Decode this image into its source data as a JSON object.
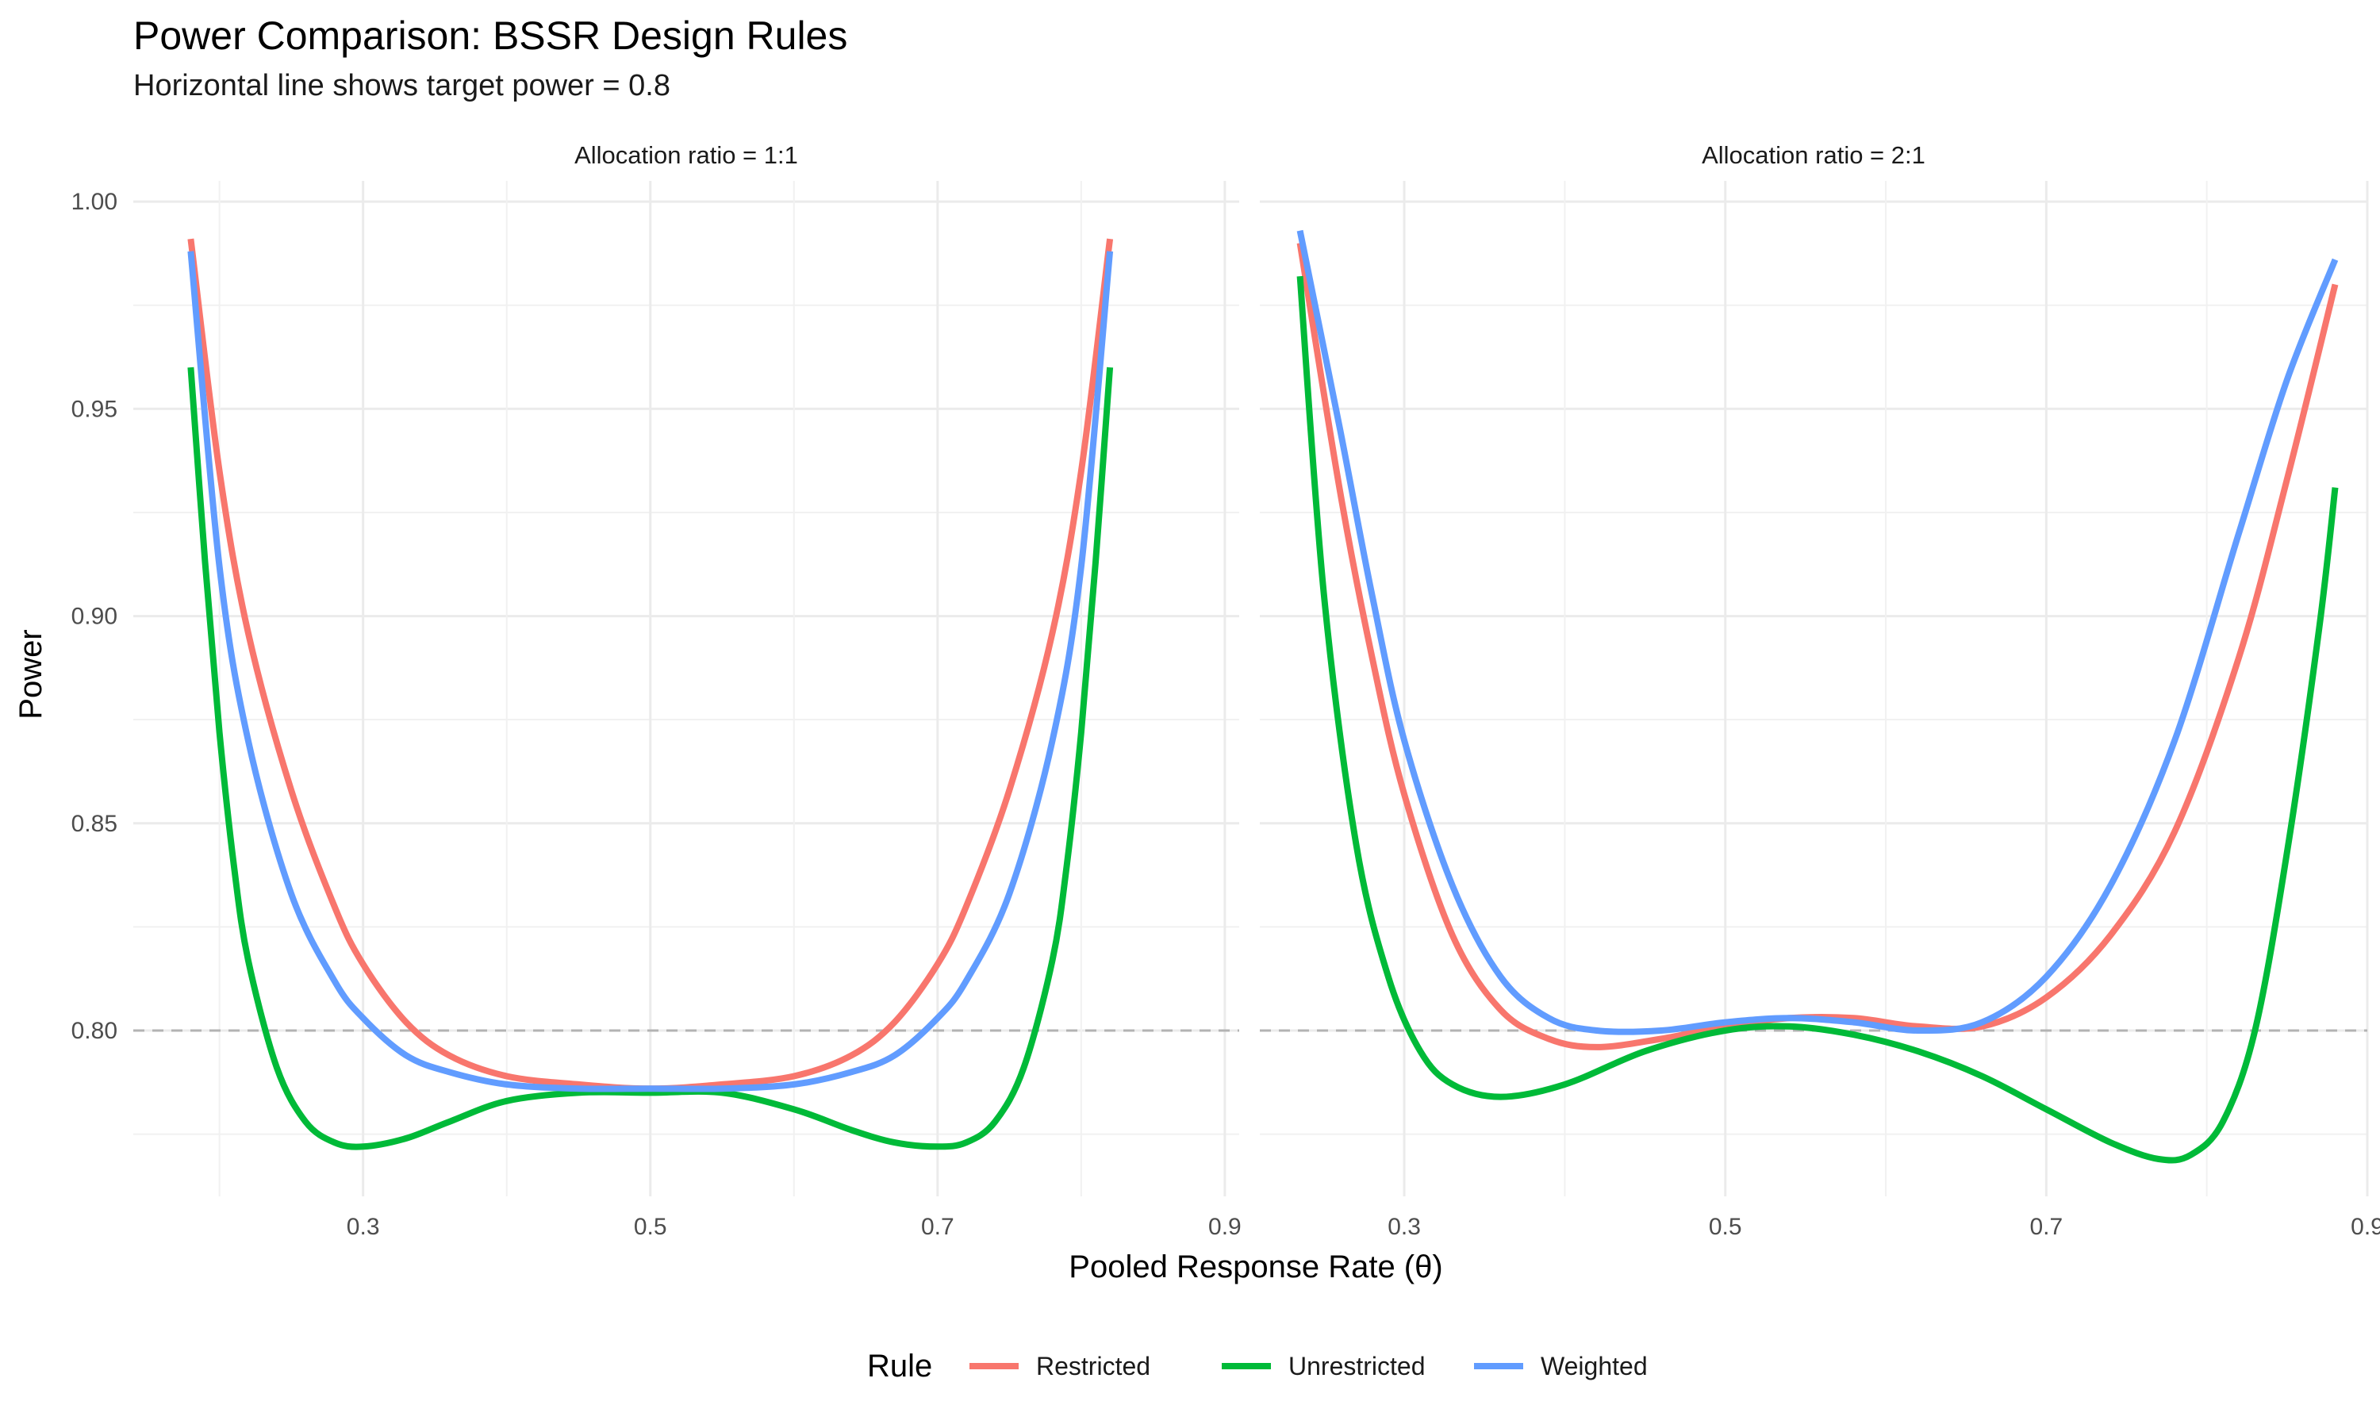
{
  "chart_data": {
    "type": "line",
    "title": "Power Comparison: BSSR Design Rules",
    "subtitle": "Horizontal line shows target power = 0.8",
    "xlabel": "Pooled Response Rate (θ)",
    "ylabel": "Power",
    "ylim": [
      0.76,
      1.005
    ],
    "y_ticks": [
      "0.80",
      "0.85",
      "0.90",
      "0.95",
      "1.00"
    ],
    "x_ticks": [
      "0.3",
      "0.5",
      "0.7",
      "0.9"
    ],
    "reference_line": {
      "y": 0.8,
      "style": "dashed",
      "color": "#b3b3b3"
    },
    "grid": true,
    "legend": {
      "title": "Rule",
      "position": "bottom",
      "entries": [
        {
          "name": "Restricted",
          "color": "#F8766D"
        },
        {
          "name": "Unrestricted",
          "color": "#00BA38"
        },
        {
          "name": "Weighted",
          "color": "#619CFF"
        }
      ]
    },
    "panels": [
      {
        "strip_label": "Allocation ratio = 1:1",
        "xlim": [
          0.14,
          0.91
        ],
        "series": [
          {
            "name": "Restricted",
            "color": "#F8766D",
            "x": [
              0.18,
              0.2,
              0.22,
              0.25,
              0.28,
              0.3,
              0.33,
              0.36,
              0.4,
              0.45,
              0.5,
              0.55,
              0.6,
              0.64,
              0.67,
              0.7,
              0.72,
              0.75,
              0.78,
              0.8,
              0.82
            ],
            "y": [
              0.991,
              0.935,
              0.896,
              0.858,
              0.83,
              0.816,
              0.802,
              0.794,
              0.789,
              0.787,
              0.786,
              0.787,
              0.789,
              0.794,
              0.802,
              0.816,
              0.83,
              0.858,
              0.896,
              0.935,
              0.991
            ]
          },
          {
            "name": "Unrestricted",
            "color": "#00BA38",
            "x": [
              0.18,
              0.19,
              0.2,
              0.21,
              0.22,
              0.24,
              0.26,
              0.28,
              0.3,
              0.33,
              0.36,
              0.4,
              0.45,
              0.5,
              0.55,
              0.6,
              0.64,
              0.67,
              0.7,
              0.72,
              0.74,
              0.76,
              0.78,
              0.79,
              0.8,
              0.81,
              0.82
            ],
            "y": [
              0.96,
              0.913,
              0.872,
              0.84,
              0.817,
              0.791,
              0.778,
              0.773,
              0.772,
              0.774,
              0.778,
              0.783,
              0.785,
              0.785,
              0.785,
              0.781,
              0.776,
              0.773,
              0.772,
              0.773,
              0.778,
              0.791,
              0.817,
              0.84,
              0.872,
              0.913,
              0.96
            ]
          },
          {
            "name": "Weighted",
            "color": "#619CFF",
            "x": [
              0.18,
              0.2,
              0.22,
              0.25,
              0.28,
              0.3,
              0.33,
              0.36,
              0.4,
              0.45,
              0.5,
              0.55,
              0.6,
              0.64,
              0.67,
              0.7,
              0.72,
              0.75,
              0.78,
              0.8,
              0.82
            ],
            "y": [
              0.988,
              0.912,
              0.87,
              0.833,
              0.812,
              0.803,
              0.794,
              0.79,
              0.787,
              0.786,
              0.786,
              0.786,
              0.787,
              0.79,
              0.794,
              0.803,
              0.812,
              0.833,
              0.87,
              0.912,
              0.988
            ]
          }
        ]
      },
      {
        "strip_label": "Allocation ratio = 2:1",
        "xlim": [
          0.21,
          0.9
        ],
        "series": [
          {
            "name": "Restricted",
            "color": "#F8766D",
            "x": [
              0.235,
              0.26,
              0.28,
              0.3,
              0.33,
              0.36,
              0.39,
              0.42,
              0.46,
              0.5,
              0.54,
              0.58,
              0.62,
              0.66,
              0.7,
              0.74,
              0.78,
              0.82,
              0.85,
              0.88
            ],
            "y": [
              0.99,
              0.93,
              0.89,
              0.857,
              0.823,
              0.805,
              0.798,
              0.796,
              0.798,
              0.801,
              0.803,
              0.803,
              0.801,
              0.801,
              0.808,
              0.823,
              0.848,
              0.89,
              0.933,
              0.98
            ]
          },
          {
            "name": "Unrestricted",
            "color": "#00BA38",
            "x": [
              0.235,
              0.25,
              0.27,
              0.29,
              0.31,
              0.33,
              0.36,
              0.4,
              0.45,
              0.5,
              0.54,
              0.58,
              0.62,
              0.66,
              0.7,
              0.74,
              0.77,
              0.79,
              0.81,
              0.83,
              0.85,
              0.87,
              0.88
            ],
            "y": [
              0.982,
              0.905,
              0.845,
              0.813,
              0.795,
              0.787,
              0.784,
              0.787,
              0.795,
              0.8,
              0.801,
              0.799,
              0.795,
              0.789,
              0.781,
              0.773,
              0.769,
              0.77,
              0.778,
              0.8,
              0.843,
              0.897,
              0.931
            ]
          },
          {
            "name": "Weighted",
            "color": "#619CFF",
            "x": [
              0.235,
              0.26,
              0.28,
              0.3,
              0.33,
              0.36,
              0.39,
              0.42,
              0.46,
              0.5,
              0.54,
              0.58,
              0.62,
              0.66,
              0.7,
              0.74,
              0.78,
              0.82,
              0.85,
              0.88
            ],
            "y": [
              0.993,
              0.945,
              0.905,
              0.87,
              0.835,
              0.813,
              0.803,
              0.8,
              0.8,
              0.802,
              0.803,
              0.802,
              0.8,
              0.802,
              0.813,
              0.835,
              0.87,
              0.92,
              0.957,
              0.986
            ]
          }
        ]
      }
    ]
  }
}
